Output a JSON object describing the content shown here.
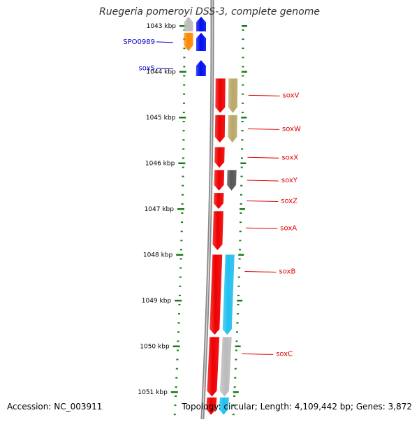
{
  "title": "Ruegeria pomeroyi DSS-3, complete genome",
  "accession": "Accession: NC_003911",
  "summary": "Topology: circular; Length: 4,109,442 bp; Genes: 3,872",
  "colors": {
    "ruler": "#1a7a1a",
    "backbone": "#888888",
    "label_blue": "#0000cc",
    "label_red": "#dd0000",
    "blue": "#0010ee",
    "red": "#ee0000",
    "orange": "#ff8800",
    "olive": "#b8a868",
    "dark_gray": "#555555",
    "light_gray": "#bbbbbb",
    "cyan": "#22c0f0"
  },
  "ruler": [
    {
      "kbp": 1043,
      "label": "1043 kbp"
    },
    {
      "kbp": 1044,
      "label": "1044 kbp"
    },
    {
      "kbp": 1045,
      "label": "1045 kbp"
    },
    {
      "kbp": 1046,
      "label": "1046 kbp"
    },
    {
      "kbp": 1047,
      "label": "1047 kbp"
    },
    {
      "kbp": 1048,
      "label": "1048 kbp"
    },
    {
      "kbp": 1049,
      "label": "1049 kbp"
    },
    {
      "kbp": 1050,
      "label": "1050 kbp"
    },
    {
      "kbp": 1051,
      "label": "1051 kbp"
    }
  ],
  "features": [
    {
      "name": "",
      "lane": "inner2",
      "start": 1042.8,
      "end": 1043.12,
      "strand": "+",
      "color": "light_gray"
    },
    {
      "name": "",
      "lane": "inner1",
      "start": 1042.8,
      "end": 1043.12,
      "strand": "+",
      "color": "blue"
    },
    {
      "name": "SPO0989",
      "lane": "inner2",
      "start": 1043.15,
      "end": 1043.55,
      "strand": "-",
      "color": "orange",
      "label_color": "label_blue"
    },
    {
      "name": "",
      "lane": "inner1",
      "start": 1043.15,
      "end": 1043.55,
      "strand": "+",
      "color": "blue"
    },
    {
      "name": "soxS",
      "lane": "inner1",
      "start": 1043.75,
      "end": 1044.1,
      "strand": "+",
      "color": "blue",
      "label_color": "label_blue"
    },
    {
      "name": "soxV",
      "lane": "outer1",
      "start": 1044.15,
      "end": 1044.9,
      "strand": "-",
      "color": "red",
      "label_color": "label_red"
    },
    {
      "name": "",
      "lane": "outer2",
      "start": 1044.15,
      "end": 1044.9,
      "strand": "-",
      "color": "olive"
    },
    {
      "name": "soxW",
      "lane": "outer1",
      "start": 1044.95,
      "end": 1045.55,
      "strand": "-",
      "color": "red",
      "label_color": "label_red"
    },
    {
      "name": "",
      "lane": "outer2",
      "start": 1044.95,
      "end": 1045.55,
      "strand": "-",
      "color": "olive"
    },
    {
      "name": "soxX",
      "lane": "outer1",
      "start": 1045.65,
      "end": 1046.1,
      "strand": "-",
      "color": "red",
      "label_color": "label_red"
    },
    {
      "name": "soxY",
      "lane": "outer1",
      "start": 1046.15,
      "end": 1046.6,
      "strand": "-",
      "color": "red",
      "label_color": "label_red"
    },
    {
      "name": "",
      "lane": "outer2",
      "start": 1046.15,
      "end": 1046.6,
      "strand": "-",
      "color": "dark_gray"
    },
    {
      "name": "soxZ",
      "lane": "outer1",
      "start": 1046.65,
      "end": 1047.0,
      "strand": "-",
      "color": "red",
      "label_color": "label_red"
    },
    {
      "name": "soxA",
      "lane": "outer1",
      "start": 1047.05,
      "end": 1047.9,
      "strand": "-",
      "color": "red",
      "label_color": "label_red"
    },
    {
      "name": "soxB",
      "lane": "outer1",
      "start": 1048.0,
      "end": 1049.75,
      "strand": "-",
      "color": "red",
      "label_color": "label_red"
    },
    {
      "name": "",
      "lane": "outer2",
      "start": 1048.0,
      "end": 1049.75,
      "strand": "-",
      "color": "cyan"
    },
    {
      "name": "soxC",
      "lane": "outer1",
      "start": 1049.8,
      "end": 1051.1,
      "strand": "-",
      "color": "red",
      "label_color": "label_red"
    },
    {
      "name": "",
      "lane": "outer2",
      "start": 1049.8,
      "end": 1051.1,
      "strand": "-",
      "color": "light_gray"
    },
    {
      "name": "",
      "lane": "outer1",
      "start": 1051.12,
      "end": 1051.5,
      "strand": "-",
      "color": "red"
    },
    {
      "name": "",
      "lane": "outer2",
      "start": 1051.12,
      "end": 1051.5,
      "strand": "-",
      "color": "cyan"
    }
  ]
}
